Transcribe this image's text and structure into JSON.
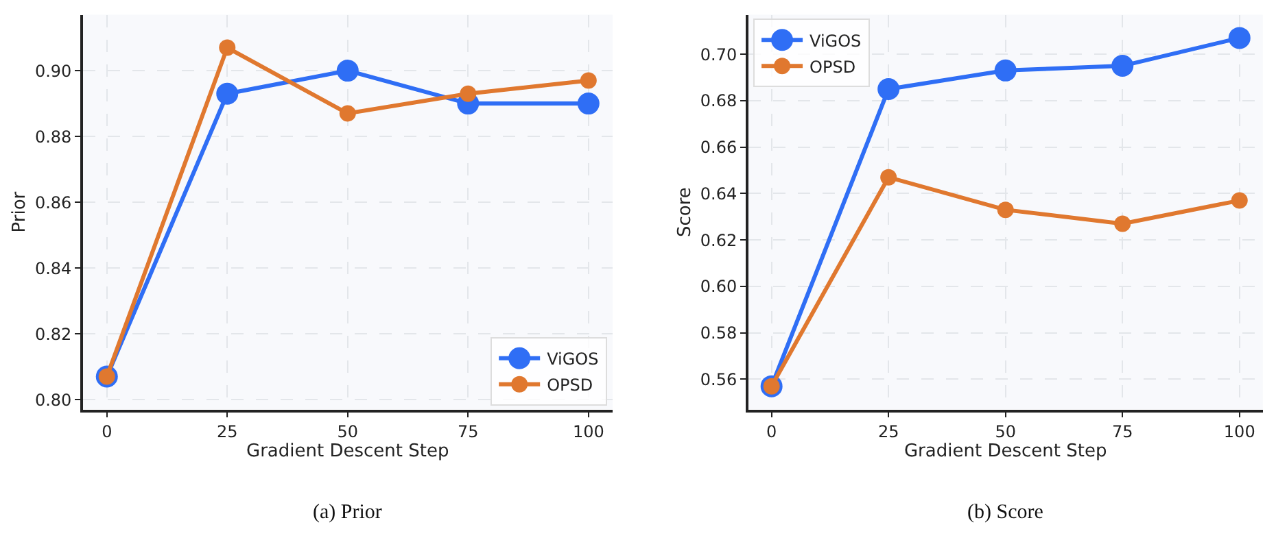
{
  "chart_data": [
    {
      "type": "line",
      "xlabel": "Gradient Descent Step",
      "ylabel": "Prior",
      "x": [
        0,
        25,
        50,
        75,
        100
      ],
      "series": [
        {
          "name": "ViGOS",
          "color": "#2f6ef5",
          "values": [
            0.807,
            0.893,
            0.9,
            0.89,
            0.89
          ]
        },
        {
          "name": "OPSD",
          "color": "#e0782f",
          "values": [
            0.807,
            0.907,
            0.887,
            0.893,
            0.897
          ]
        }
      ],
      "xlim": [
        -5,
        105
      ],
      "xticks": [
        0,
        25,
        50,
        75,
        100
      ],
      "ylim": [
        0.797,
        0.917
      ],
      "yticks": [
        {
          "value": 0.8,
          "label": "0.80"
        },
        {
          "value": 0.82,
          "label": "0.82"
        },
        {
          "value": 0.84,
          "label": "0.84"
        },
        {
          "value": 0.86,
          "label": "0.86"
        },
        {
          "value": 0.88,
          "label": "0.88"
        },
        {
          "value": 0.9,
          "label": "0.90"
        }
      ],
      "grid": true,
      "legend": "bottom right",
      "marker": "circle",
      "line_style": "solid",
      "annotations": [
        "(a) Prior"
      ]
    },
    {
      "type": "line",
      "xlabel": "Gradient Descent Step",
      "ylabel": "Score",
      "x": [
        0,
        25,
        50,
        75,
        100
      ],
      "series": [
        {
          "name": "ViGOS",
          "color": "#2f6ef5",
          "values": [
            0.557,
            0.685,
            0.693,
            0.695,
            0.707
          ]
        },
        {
          "name": "OPSD",
          "color": "#e0782f",
          "values": [
            0.557,
            0.647,
            0.633,
            0.627,
            0.637
          ]
        }
      ],
      "xlim": [
        -5,
        105
      ],
      "xticks": [
        0,
        25,
        50,
        75,
        100
      ],
      "ylim": [
        0.547,
        0.717
      ],
      "yticks": [
        {
          "value": 0.56,
          "label": "0.56"
        },
        {
          "value": 0.58,
          "label": "0.58"
        },
        {
          "value": 0.6,
          "label": "0.60"
        },
        {
          "value": 0.62,
          "label": "0.62"
        },
        {
          "value": 0.64,
          "label": "0.64"
        },
        {
          "value": 0.66,
          "label": "0.66"
        },
        {
          "value": 0.68,
          "label": "0.68"
        },
        {
          "value": 0.7,
          "label": "0.70"
        }
      ],
      "grid": true,
      "legend": "top left",
      "marker": "circle",
      "line_style": "solid",
      "annotations": [
        "(b) Score"
      ]
    }
  ]
}
